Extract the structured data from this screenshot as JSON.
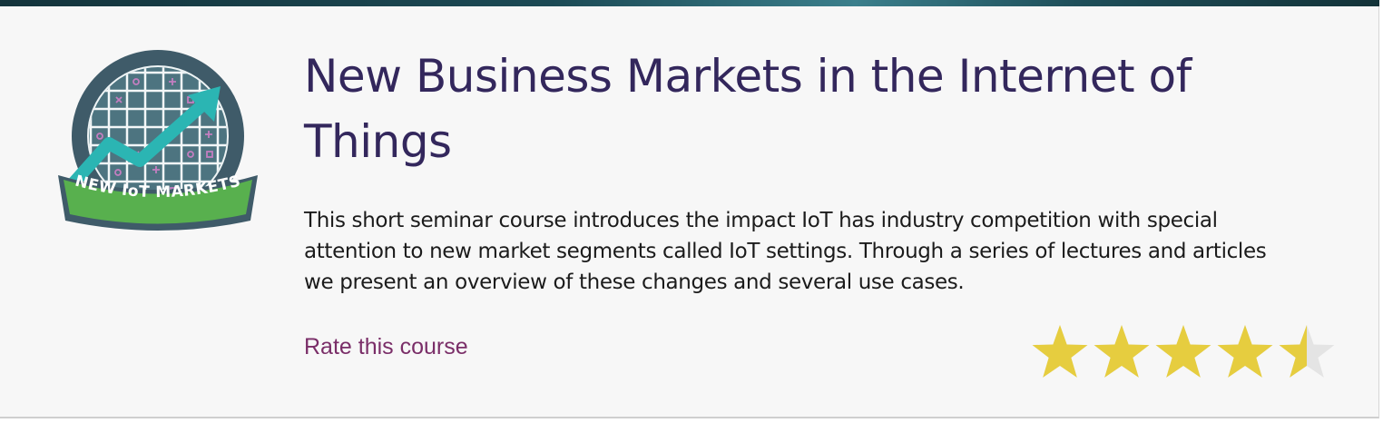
{
  "course": {
    "title": "New Business Markets in the Internet of Things",
    "description": "This short seminar course introduces the impact IoT has industry competition with special attention to new market segments called IoT settings. Through a series of lectures and articles we present an overview of these changes and several use cases.",
    "badge_text": "NEW IoT MARKETS",
    "rate_label": "Rate this course"
  },
  "rating": {
    "value": 4.5,
    "max": 5
  },
  "colors": {
    "title": "#33275c",
    "link": "#7a2e68",
    "star_filled": "#e6cd3f",
    "star_empty": "#e4e4e4",
    "badge_ring": "#3f5b69",
    "badge_ribbon": "#58b04e",
    "badge_arrow": "#2bb5b3"
  }
}
